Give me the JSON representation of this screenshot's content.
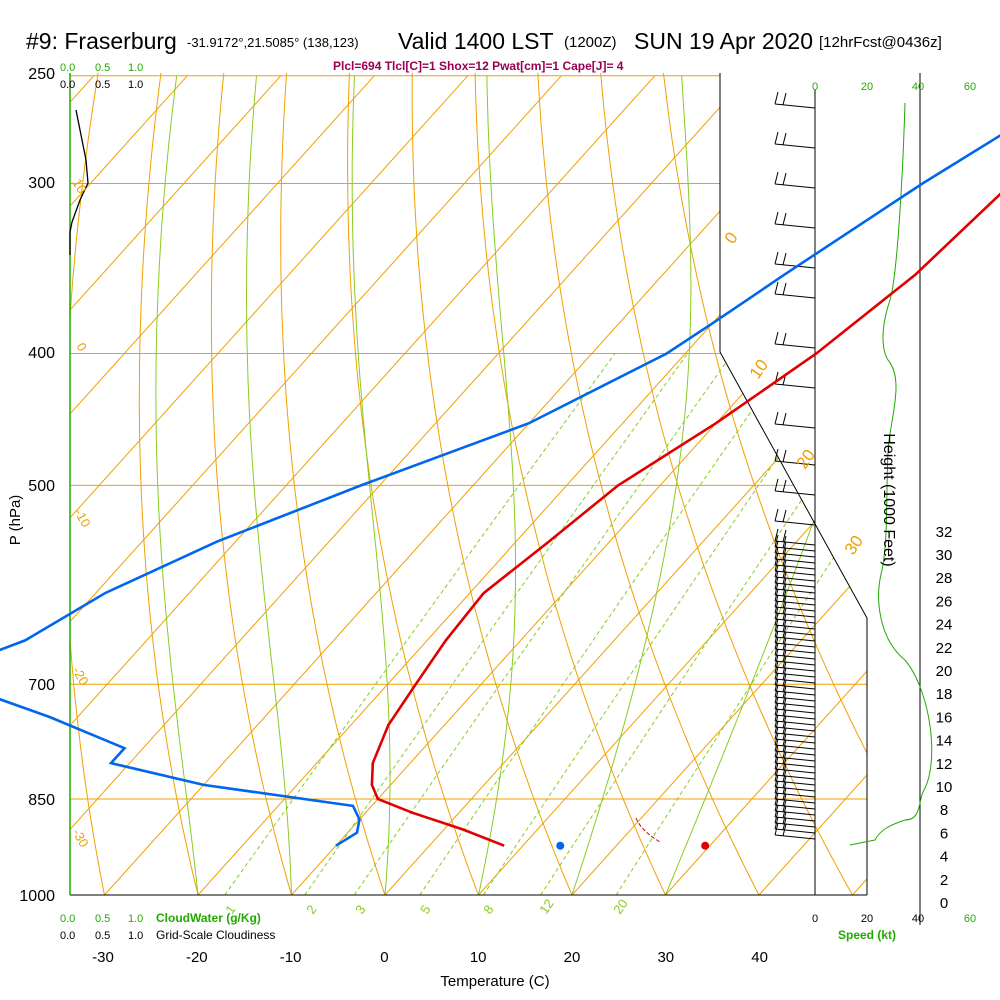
{
  "header": {
    "station": "#9: Fraserburg",
    "coords": "-31.9172°,21.5085° (138,123)",
    "valid": "Valid 1400 LST",
    "zulu": "(1200Z)",
    "date": "SUN 19 Apr 2020",
    "forecast": "[12hrFcst@0436z]"
  },
  "indices_line": "Plcl=694 Tlcl[C]=1 Shox=12 Pwat[cm]=1 Cape[J]= 4",
  "colors": {
    "temperature": "#e00000",
    "dewpoint": "#0066ee",
    "isotherm": "#f0a000",
    "dry_adiabat": "#f0a000",
    "moist_adiabat": "#88cc22",
    "mixing_ratio": "#88cc22",
    "green_text": "#22aa00",
    "indices_text": "#990055"
  },
  "cloud_scale": {
    "top_green": [
      "0.0",
      "0.5",
      "1.0"
    ],
    "top_black": [
      "0.0",
      "0.5",
      "1.0"
    ],
    "bottom_green": [
      "0.0",
      "0.5",
      "1.0"
    ],
    "bottom_green_label": "CloudWater (g/Kg)",
    "bottom_black": [
      "0.0",
      "0.5",
      "1.0"
    ],
    "bottom_black_label": "Grid-Scale Cloudiness"
  },
  "speed_axis": {
    "top_black": [
      "0",
      "20",
      "40"
    ],
    "top_green": [
      "0",
      "20",
      "40",
      "60"
    ],
    "bottom_black": [
      "0",
      "20",
      "40"
    ],
    "bottom_green": [
      "0",
      "20",
      "40",
      "60"
    ],
    "label": "Speed (kt)"
  },
  "chart_data": {
    "type": "line",
    "subtype": "skew-T log-P sounding",
    "xlabel": "Temperature (C)",
    "ylabel": "P (hPa)",
    "y2label": "Height (1000 Feet)",
    "x_ticks": [
      "-30",
      "-20",
      "-10",
      "0",
      "10",
      "20",
      "30",
      "40"
    ],
    "y_ticks": [
      "250",
      "300",
      "400",
      "500",
      "700",
      "850",
      "1000"
    ],
    "height_ticks": [
      "0",
      "2",
      "4",
      "6",
      "8",
      "10",
      "12",
      "14",
      "16",
      "18",
      "20",
      "22",
      "24",
      "26",
      "28",
      "30",
      "32"
    ],
    "isotherm_labels": [
      "0",
      "10",
      "20",
      "30"
    ],
    "left_labels": [
      "10",
      "0",
      "-10",
      "-20",
      "-30"
    ],
    "mixing_ratio_labels": [
      "1",
      "2",
      "3",
      "5",
      "8",
      "12",
      "20"
    ],
    "series": [
      {
        "name": "Temperature",
        "points": [
          {
            "p": 260,
            "t": 0.8
          },
          {
            "p": 300,
            "t": -1.5
          },
          {
            "p": 350,
            "t": -3.0
          },
          {
            "p": 400,
            "t": -6.0
          },
          {
            "p": 450,
            "t": -10.0
          },
          {
            "p": 500,
            "t": -14.5
          },
          {
            "p": 550,
            "t": -16.5
          },
          {
            "p": 600,
            "t": -18.5
          },
          {
            "p": 650,
            "t": -18.0
          },
          {
            "p": 700,
            "t": -17.0
          },
          {
            "p": 750,
            "t": -16.0
          },
          {
            "p": 800,
            "t": -14.0
          },
          {
            "p": 830,
            "t": -12.0
          },
          {
            "p": 850,
            "t": -10.0
          },
          {
            "p": 870,
            "t": -5.0
          },
          {
            "p": 895,
            "t": 2.0
          },
          {
            "p": 920,
            "t": 8.0
          }
        ]
      },
      {
        "name": "Dewpoint",
        "points": [
          {
            "p": 260,
            "t": -4.5
          },
          {
            "p": 300,
            "t": -11.0
          },
          {
            "p": 350,
            "t": -17.0
          },
          {
            "p": 380,
            "t": -20.0
          },
          {
            "p": 400,
            "t": -22.0
          },
          {
            "p": 450,
            "t": -30.0
          },
          {
            "p": 500,
            "t": -42.0
          },
          {
            "p": 550,
            "t": -52.0
          },
          {
            "p": 600,
            "t": -59.0
          },
          {
            "p": 650,
            "t": -63.0
          },
          {
            "p": 680,
            "t": -68.0
          },
          {
            "p": 700,
            "t": -66.0
          },
          {
            "p": 740,
            "t": -53.0
          },
          {
            "p": 780,
            "t": -42.0
          },
          {
            "p": 800,
            "t": -42.0
          },
          {
            "p": 830,
            "t": -30.0
          },
          {
            "p": 860,
            "t": -12.0
          },
          {
            "p": 880,
            "t": -10.0
          },
          {
            "p": 900,
            "t": -9.0
          },
          {
            "p": 920,
            "t": -10.0
          }
        ]
      }
    ],
    "surface_temperature": 29.5,
    "surface_dewpoint": 14.0,
    "surface_pressure": 920
  }
}
